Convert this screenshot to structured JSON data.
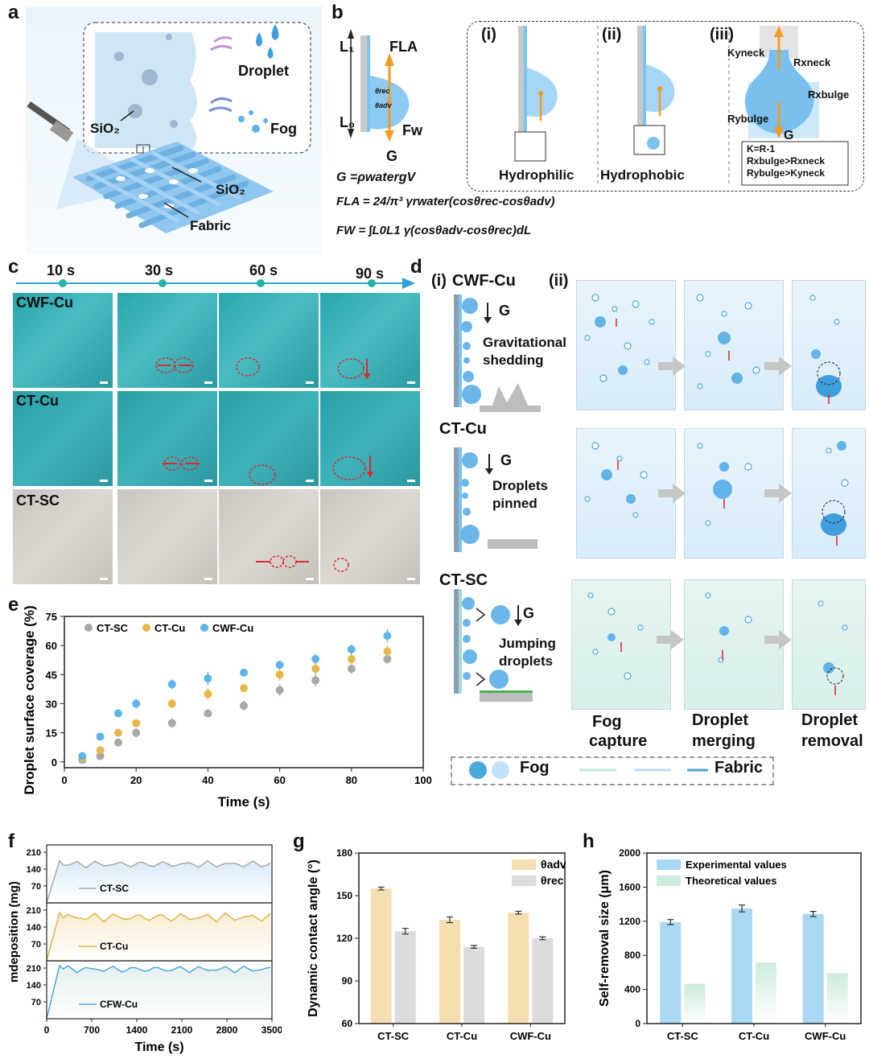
{
  "panel_labels": [
    "a",
    "b",
    "c",
    "d",
    "e",
    "f",
    "g",
    "h"
  ],
  "panel_a": {
    "droplet": "Droplet",
    "fog": "Fog",
    "sio2_inset": "SiO₂",
    "sio2_fabric": "SiO₂",
    "fabric": "Fabric"
  },
  "panel_b": {
    "L1": "L₁",
    "L0": "L₀",
    "FLA": "FLA",
    "Fw": "Fw",
    "G": "G",
    "theta_rec": "θrec",
    "theta_adv": "θadv",
    "eq1": "G =ρwatergV",
    "eq2": "FLA = 24/π³ γrwater(cosθrec-cosθadv)",
    "eq3": "FW = ∫L0L1 γ(cosθadv-cosθrec)dL",
    "sub_i": "(i)",
    "sub_ii": "(ii)",
    "sub_iii": "(iii)",
    "hydrophilic": "Hydrophilic",
    "hydrophobic": "Hydrophobic",
    "ky_neck": "Kyneck",
    "rx_neck": "Rxneck",
    "rx_bulge": "Rxbulge",
    "ry_bulge": "Rybulge",
    "box_line1": "K=R-1",
    "box_line2": "Rxbulge>Rxneck",
    "box_line3": "Rybulge>Kyneck"
  },
  "panel_c": {
    "times": [
      "10 s",
      "30 s",
      "60 s",
      "90 s"
    ],
    "rows": [
      "CWF-Cu",
      "CT-Cu",
      "CT-SC"
    ]
  },
  "panel_d": {
    "sub_i": "(i)",
    "sub_i_title": "CWF-Cu",
    "sub_ii": "(ii)",
    "rows": [
      {
        "name": "CWF-Cu",
        "desc1": "Gravitational",
        "desc2": "shedding"
      },
      {
        "name": "CT-Cu",
        "desc1": "Droplets",
        "desc2": "pinned"
      },
      {
        "name": "CT-SC",
        "desc1": "Jumping",
        "desc2": "droplets"
      }
    ],
    "G": "G",
    "stages": [
      [
        "Fog",
        "capture"
      ],
      [
        "Droplet",
        "merging"
      ],
      [
        "Droplet",
        "removal"
      ]
    ],
    "legend_fog": "Fog",
    "legend_fabric": "Fabric"
  },
  "panel_e": {
    "chart_data": {
      "type": "scatter",
      "xlabel": "Time (s)",
      "ylabel": "Droplet surface coverage (%)",
      "xlim": [
        0,
        100
      ],
      "ylim": [
        -3,
        75
      ],
      "xticks": [
        0,
        20,
        40,
        60,
        80,
        100
      ],
      "yticks": [
        0,
        15,
        30,
        45,
        60,
        75
      ],
      "x": [
        5,
        10,
        15,
        20,
        30,
        40,
        50,
        60,
        70,
        80,
        90
      ],
      "series": [
        {
          "name": "CT-SC",
          "color": "#a8a8a8",
          "values": [
            1,
            3,
            10,
            15,
            20,
            25,
            29,
            37,
            42,
            48,
            53
          ],
          "errors": [
            1,
            1,
            1,
            2.5,
            2.5,
            1.5,
            2.5,
            3,
            3,
            2.5,
            2.5
          ]
        },
        {
          "name": "CT-Cu",
          "color": "#e8b84a",
          "values": [
            2,
            6,
            15,
            20,
            30,
            35,
            38,
            45,
            48,
            53,
            57
          ],
          "errors": [
            1,
            1,
            1,
            2,
            2.5,
            3,
            2,
            3,
            3,
            3,
            3
          ]
        },
        {
          "name": "CWF-Cu",
          "color": "#5eb5ea",
          "values": [
            3,
            13,
            25,
            30,
            40,
            43,
            46,
            50,
            53,
            58,
            65
          ],
          "errors": [
            1,
            2,
            2,
            2.5,
            2.5,
            3.5,
            2,
            2,
            2.5,
            2.5,
            3.5
          ]
        }
      ]
    }
  },
  "panel_f": {
    "chart_data": {
      "type": "line",
      "xlabel": "Time (s)",
      "ylabel": "mdeposition (mg)",
      "xlim": [
        0,
        3500
      ],
      "xticks": [
        0,
        700,
        1400,
        2100,
        2800,
        3500
      ],
      "yticks": [
        70,
        140,
        210
      ],
      "series": [
        {
          "name": "CT-SC",
          "color": "#a9a9a9",
          "plateau": 160,
          "amplitude": 15
        },
        {
          "name": "CT-Cu",
          "color": "#e2b548",
          "plateau": 180,
          "amplitude": 20
        },
        {
          "name": "CFW-Cu",
          "color": "#4aa8de",
          "plateau": 205,
          "amplitude": 15
        }
      ]
    }
  },
  "panel_g": {
    "chart_data": {
      "type": "bar",
      "categories": [
        "CT-SC",
        "CT-Cu",
        "CWF-Cu"
      ],
      "ylabel": "Dynamic contact angle (°)",
      "ylim": [
        60,
        180
      ],
      "yticks": [
        60,
        90,
        120,
        150,
        180
      ],
      "series": [
        {
          "name": "θadv",
          "color": "#f5deb0",
          "values": [
            155,
            133,
            138
          ],
          "errors": [
            1,
            2,
            1
          ]
        },
        {
          "name": "θrec",
          "color": "#dcdcdc",
          "values": [
            125,
            114,
            120
          ],
          "errors": [
            2,
            1,
            1
          ]
        }
      ]
    }
  },
  "panel_h": {
    "chart_data": {
      "type": "bar",
      "categories": [
        "CT-SC",
        "CT-Cu",
        "CWF-Cu"
      ],
      "ylabel": "Self-removal size (μm)",
      "ylim": [
        0,
        2000
      ],
      "yticks": [
        0,
        400,
        800,
        1200,
        1600,
        2000
      ],
      "series": [
        {
          "name": "Experimental values",
          "color": "#a9d8f5",
          "values": [
            1190,
            1350,
            1285
          ],
          "errors": [
            30,
            40,
            30
          ]
        },
        {
          "name": "Theoretical values",
          "color": "#cdebdc",
          "values": [
            465,
            715,
            590
          ],
          "errors": [
            0,
            0,
            0
          ]
        }
      ]
    }
  }
}
